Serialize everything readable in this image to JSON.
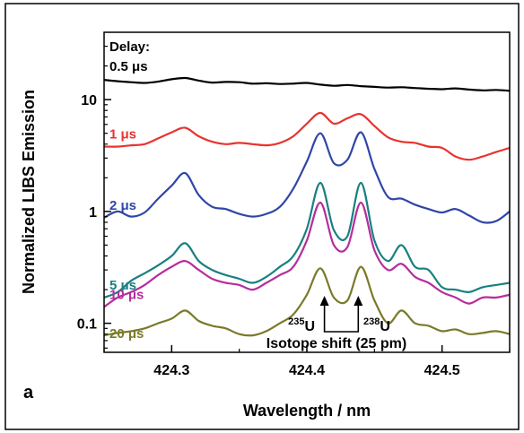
{
  "chart_data": {
    "type": "line",
    "panel_label": "a",
    "xlabel": "Wavelength / nm",
    "ylabel": "Normalized LIBS Emission",
    "xlim": [
      424.25,
      424.55
    ],
    "ylim": [
      0.055,
      40
    ],
    "yscale": "log",
    "xticks": [
      424.3,
      424.4,
      424.5
    ],
    "xtick_labels": [
      "424.3",
      "424.4",
      "424.5"
    ],
    "yticks": [
      0.1,
      1,
      10
    ],
    "ytick_labels": [
      "0.1",
      "1",
      "10"
    ],
    "grid": false,
    "legend_title": "Delay:",
    "x": [
      424.25,
      424.26,
      424.27,
      424.28,
      424.29,
      424.3,
      424.31,
      424.32,
      424.33,
      424.34,
      424.35,
      424.36,
      424.37,
      424.38,
      424.39,
      424.4,
      424.41,
      424.42,
      424.43,
      424.44,
      424.45,
      424.46,
      424.47,
      424.48,
      424.49,
      424.5,
      424.51,
      424.52,
      424.53,
      424.54,
      424.55
    ],
    "series": [
      {
        "name": "0.5 μs",
        "color": "#000000",
        "values": [
          15.0,
          14.6,
          14.3,
          14.1,
          14.5,
          15.2,
          15.6,
          14.8,
          14.2,
          14.4,
          14.3,
          13.9,
          14.0,
          13.8,
          13.9,
          14.1,
          13.6,
          13.3,
          13.5,
          13.2,
          13.0,
          12.8,
          12.9,
          12.7,
          12.5,
          12.4,
          12.6,
          12.3,
          12.1,
          12.2,
          12.0
        ]
      },
      {
        "name": "1 μs",
        "color": "#e8332e",
        "values": [
          3.8,
          3.8,
          3.9,
          4.0,
          4.5,
          5.1,
          5.6,
          4.7,
          4.2,
          4.0,
          4.1,
          4.0,
          3.9,
          4.1,
          4.7,
          6.1,
          7.6,
          6.1,
          6.8,
          7.4,
          5.8,
          4.6,
          4.2,
          4.1,
          3.8,
          3.7,
          3.1,
          2.9,
          3.1,
          3.4,
          3.7
        ]
      },
      {
        "name": "2 μs",
        "color": "#2f46a8",
        "values": [
          0.88,
          1.0,
          0.9,
          0.98,
          1.3,
          1.7,
          2.2,
          1.4,
          1.1,
          1.05,
          0.95,
          0.9,
          0.95,
          1.1,
          1.6,
          2.8,
          5.0,
          2.7,
          2.9,
          5.1,
          2.4,
          1.35,
          1.3,
          1.15,
          1.05,
          0.98,
          1.05,
          0.92,
          0.8,
          0.82,
          1.0
        ]
      },
      {
        "name": "5 μs",
        "color": "#188080",
        "values": [
          0.17,
          0.19,
          0.24,
          0.28,
          0.33,
          0.4,
          0.52,
          0.36,
          0.3,
          0.27,
          0.25,
          0.23,
          0.26,
          0.32,
          0.4,
          0.7,
          1.8,
          0.68,
          0.6,
          1.8,
          0.55,
          0.36,
          0.5,
          0.32,
          0.3,
          0.21,
          0.2,
          0.19,
          0.21,
          0.22,
          0.23
        ]
      },
      {
        "name": "10 μs",
        "color": "#b52e9c",
        "values": [
          0.14,
          0.17,
          0.19,
          0.22,
          0.27,
          0.32,
          0.36,
          0.3,
          0.25,
          0.23,
          0.22,
          0.2,
          0.23,
          0.27,
          0.32,
          0.55,
          1.2,
          0.5,
          0.48,
          1.2,
          0.45,
          0.3,
          0.34,
          0.26,
          0.23,
          0.19,
          0.17,
          0.15,
          0.17,
          0.17,
          0.18
        ]
      },
      {
        "name": "20 μs",
        "color": "#7a7a2a",
        "values": [
          0.078,
          0.082,
          0.085,
          0.09,
          0.1,
          0.11,
          0.13,
          0.105,
          0.095,
          0.09,
          0.08,
          0.078,
          0.085,
          0.1,
          0.12,
          0.18,
          0.31,
          0.17,
          0.16,
          0.32,
          0.16,
          0.1,
          0.13,
          0.1,
          0.095,
          0.085,
          0.088,
          0.08,
          0.082,
          0.085,
          0.08
        ]
      }
    ],
    "annotations": {
      "left_peak_mass": "235",
      "left_peak_element": "U",
      "right_peak_mass": "238",
      "right_peak_element": "U",
      "shift_label": "Isotope shift (25 pm)",
      "left_peak_x": 424.413,
      "right_peak_x": 424.438
    }
  }
}
